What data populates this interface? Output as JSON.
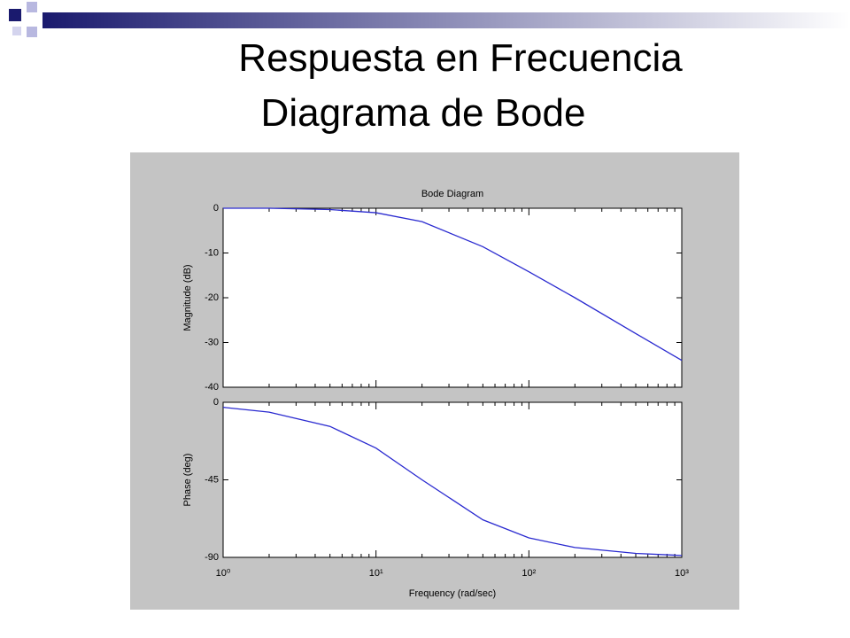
{
  "slide": {
    "title": [
      "Respuesta en Frecuencia",
      "Diagrama de Bode"
    ]
  },
  "chart_data": [
    {
      "type": "line",
      "title": "Bode Diagram",
      "ylabel": "Magnitude (dB)",
      "xscale": "log",
      "x": [
        1,
        2,
        5,
        10,
        20,
        50,
        100,
        200,
        500,
        1000
      ],
      "series": [
        {
          "color": "#2a2ad0",
          "values": [
            0,
            0,
            -0.3,
            -1,
            -3,
            -8.6,
            -14.2,
            -20,
            -28,
            -34
          ]
        }
      ],
      "xlim": [
        1,
        1000
      ],
      "ylim": [
        -40,
        0
      ],
      "yticks": [
        -40,
        -30,
        -20,
        -10,
        0
      ]
    },
    {
      "type": "line",
      "ylabel": "Phase (deg)",
      "xlabel": "Frequency  (rad/sec)",
      "xscale": "log",
      "x": [
        1,
        2,
        5,
        10,
        20,
        50,
        100,
        200,
        500,
        1000
      ],
      "series": [
        {
          "color": "#2a2ad0",
          "values": [
            -2.9,
            -5.7,
            -14,
            -26.6,
            -45,
            -68.2,
            -78.7,
            -84.3,
            -87.7,
            -88.9
          ]
        }
      ],
      "xlim": [
        1,
        1000
      ],
      "ylim": [
        -90,
        0
      ],
      "yticks": [
        -90,
        -45,
        0
      ],
      "xticks": [
        {
          "value": 1,
          "label": "10⁰"
        },
        {
          "value": 10,
          "label": "10¹"
        },
        {
          "value": 100,
          "label": "10²"
        },
        {
          "value": 1000,
          "label": "10³"
        }
      ]
    }
  ]
}
